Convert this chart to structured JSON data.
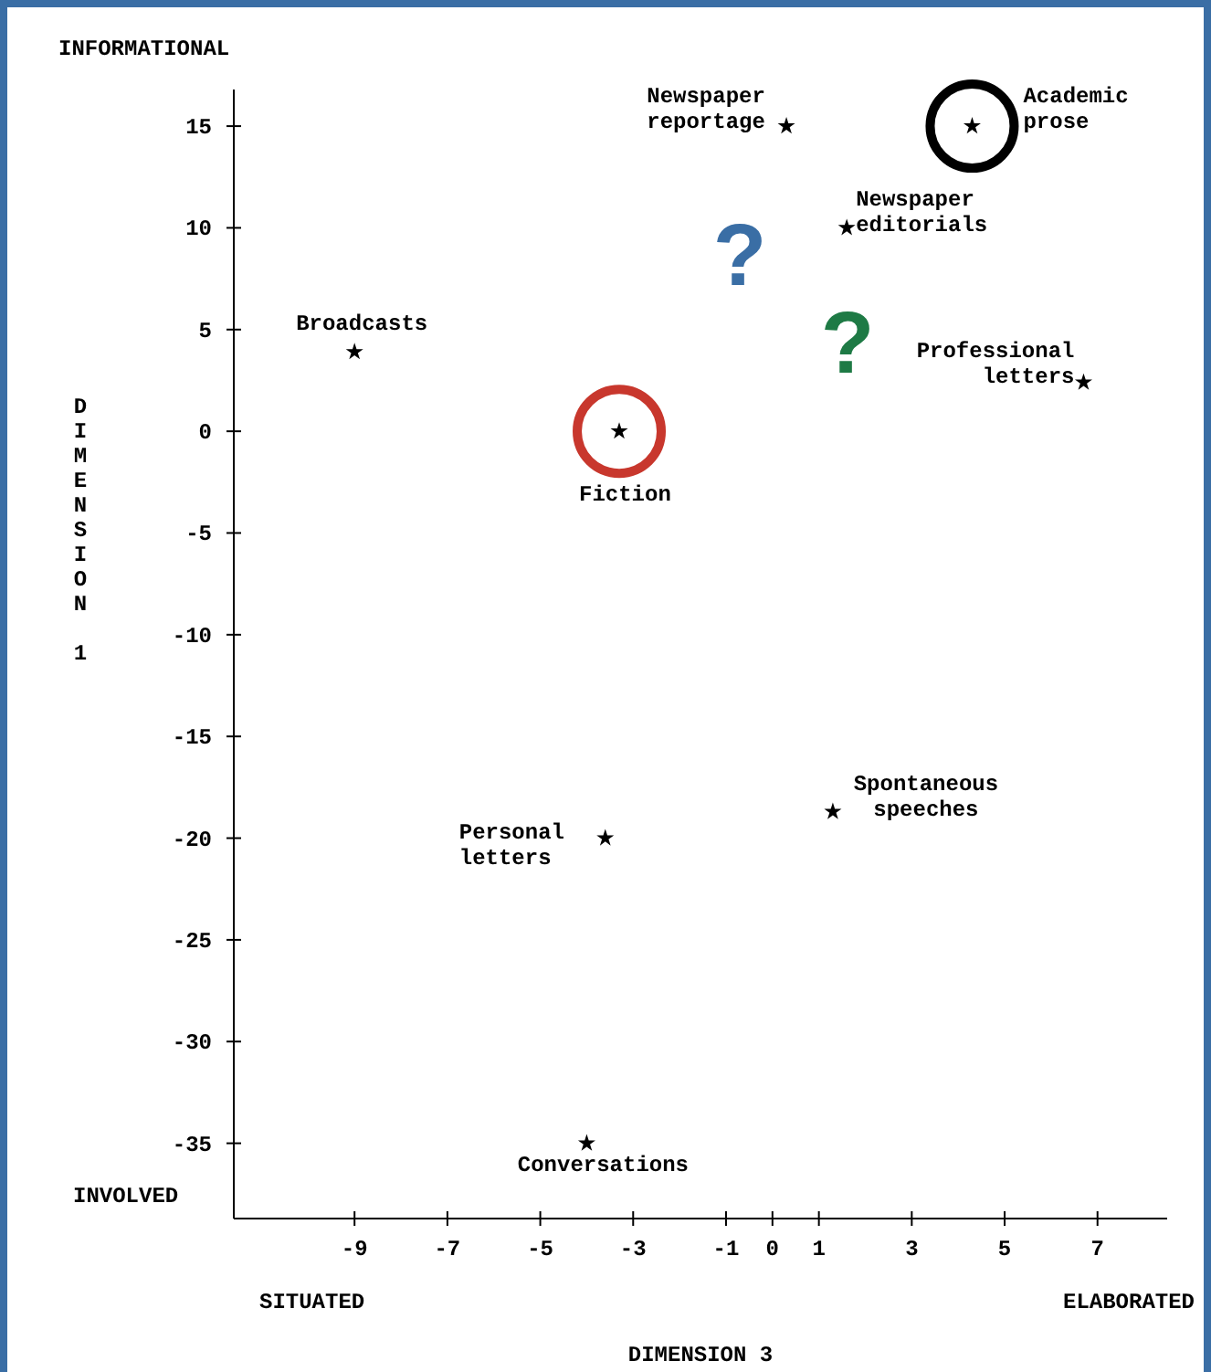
{
  "chart_data": {
    "type": "scatter",
    "xlabel": "DIMENSION 3",
    "ylabel": "DIMENSION 1",
    "marker": "star",
    "xlim": [
      -11.6,
      8.5
    ],
    "ylim": [
      -38.7,
      16.8
    ],
    "xticks": [
      -9,
      -7,
      -5,
      -3,
      -1,
      0,
      1,
      3,
      5,
      7
    ],
    "yticks": [
      15,
      10,
      5,
      0,
      -5,
      -10,
      -15,
      -20,
      -25,
      -30,
      -35
    ],
    "series": [
      {
        "color": "#000000",
        "x": [
          0.3,
          4.3,
          1.6,
          -9,
          6.7,
          -3.3,
          1.3,
          -3.6,
          -4
        ],
        "values": [
          15,
          15,
          10,
          3.9,
          2.4,
          0,
          -18.7,
          -20,
          -35
        ]
      }
    ],
    "annotations": [
      {
        "text": "Newspaper reportage",
        "x": 0.3,
        "y": 15
      },
      {
        "text": "Academic prose",
        "x": 4.3,
        "y": 15
      },
      {
        "text": "Newspaper editorials",
        "x": 1.6,
        "y": 10
      },
      {
        "text": "Broadcasts",
        "x": -9,
        "y": 3.9
      },
      {
        "text": "Professional letters",
        "x": 6.7,
        "y": 2.4
      },
      {
        "text": "Fiction",
        "x": -3.3,
        "y": 0
      },
      {
        "text": "Spontaneous speeches",
        "x": 1.3,
        "y": -18.7
      },
      {
        "text": "Personal letters",
        "x": -3.6,
        "y": -20
      },
      {
        "text": "Conversations",
        "x": -4,
        "y": -35
      },
      "INFORMATIONAL",
      "INVOLVED",
      "SITUATED",
      "ELABORATED",
      "?",
      "?"
    ]
  }
}
